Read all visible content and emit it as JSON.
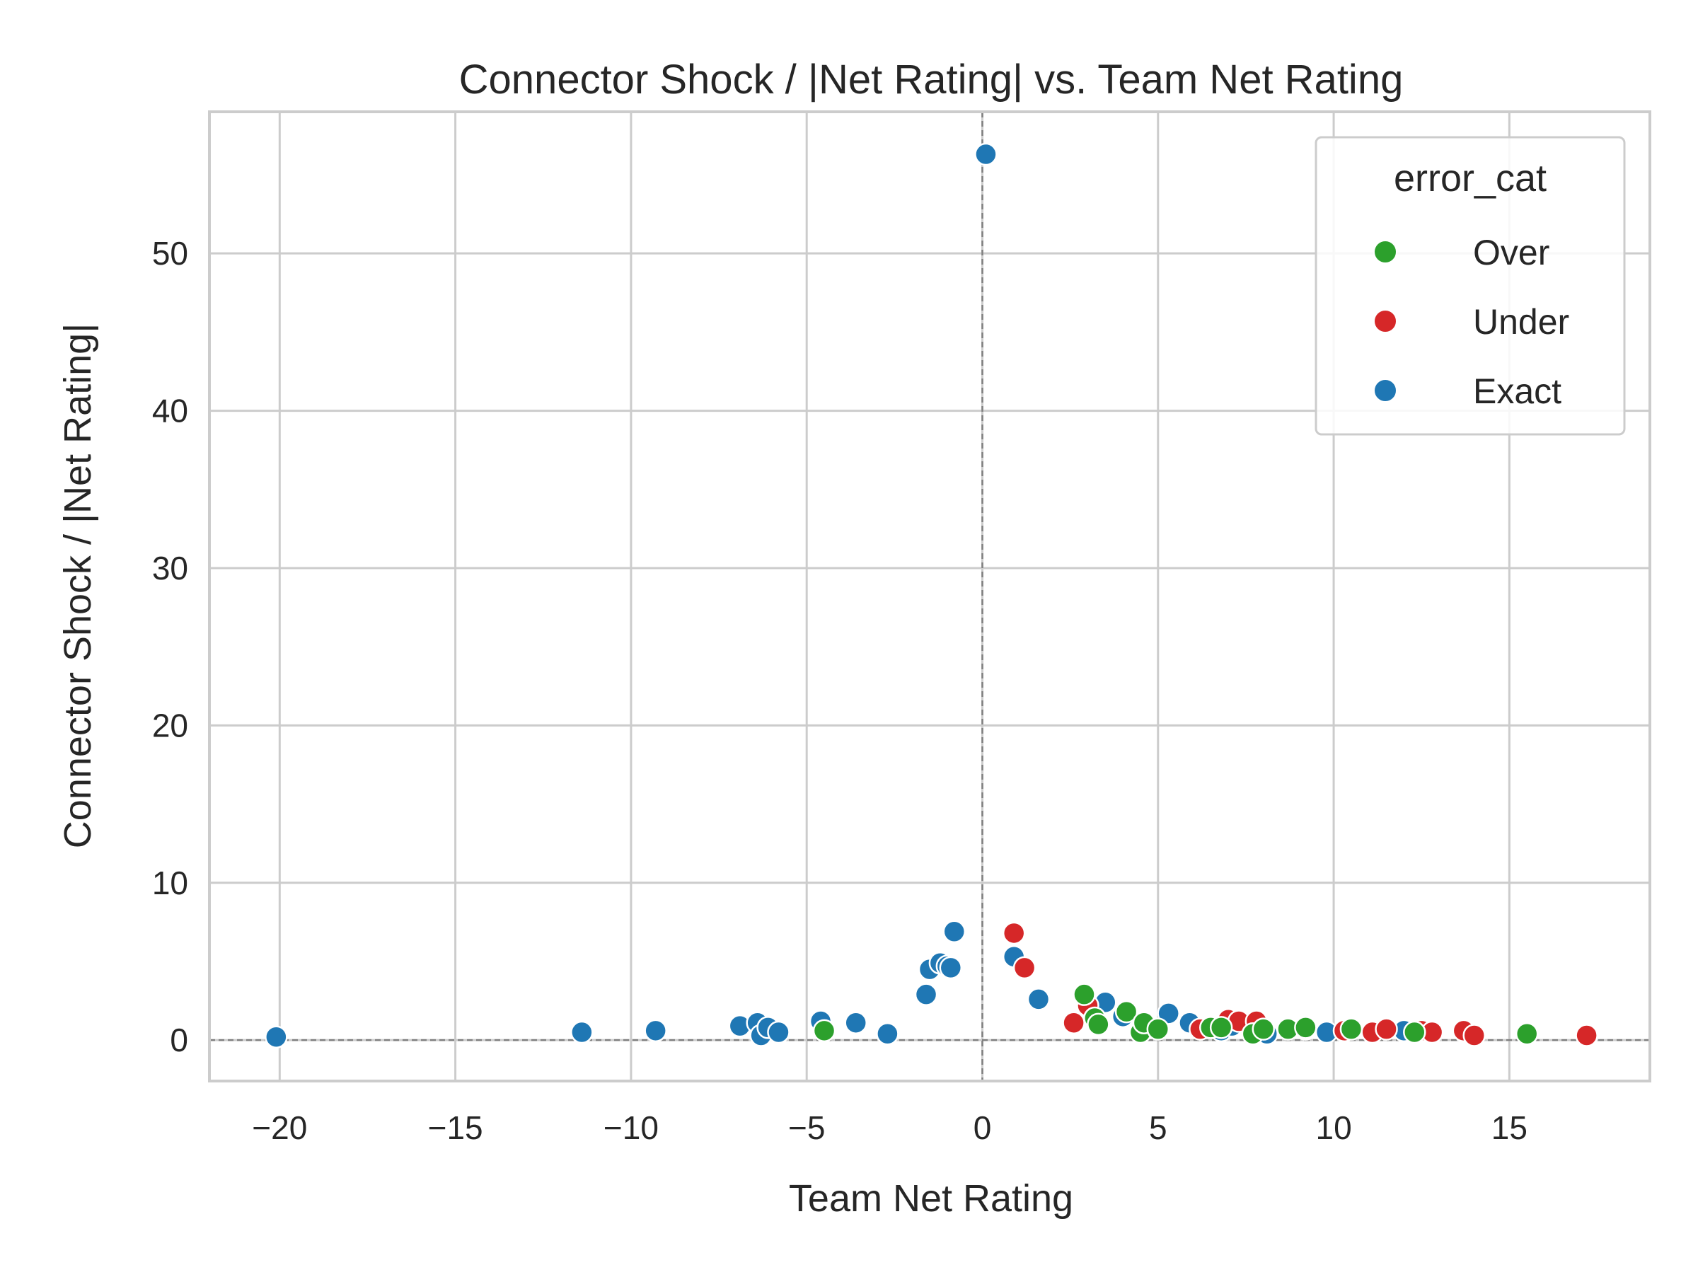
{
  "chart_data": {
    "type": "scatter",
    "title": "Connector Shock / |Net Rating| vs. Team Net Rating",
    "xlabel": "Team Net Rating",
    "ylabel": "Connector Shock / |Net Rating|",
    "xlim": [
      -22,
      19
    ],
    "ylim": [
      -2.6,
      59
    ],
    "x_ticks": [
      -20,
      -15,
      -10,
      -5,
      0,
      5,
      10,
      15
    ],
    "x_tick_labels": [
      "−20",
      "−15",
      "−10",
      "−5",
      "0",
      "5",
      "10",
      "15"
    ],
    "y_ticks": [
      0,
      10,
      20,
      30,
      40,
      50
    ],
    "y_tick_labels": [
      "0",
      "10",
      "20",
      "30",
      "40",
      "50"
    ],
    "grid": true,
    "reference_lines": {
      "x": 0,
      "y": 0,
      "style": "dashed"
    },
    "legend": {
      "title": "error_cat",
      "placement": "top-right",
      "entries": [
        {
          "label": "Over",
          "color": "#2ca02c"
        },
        {
          "label": "Under",
          "color": "#d62728"
        },
        {
          "label": "Exact",
          "color": "#1f77b4"
        }
      ]
    },
    "series": [
      {
        "name": "Exact",
        "color": "#1f77b4",
        "points": [
          [
            -20.1,
            0.2
          ],
          [
            -11.4,
            0.5
          ],
          [
            -9.3,
            0.6
          ],
          [
            -6.9,
            0.9
          ],
          [
            -6.4,
            1.1
          ],
          [
            -6.3,
            0.3
          ],
          [
            -6.1,
            0.8
          ],
          [
            -5.8,
            0.5
          ],
          [
            -4.6,
            1.2
          ],
          [
            -3.6,
            1.1
          ],
          [
            -2.7,
            0.4
          ],
          [
            -1.6,
            2.9
          ],
          [
            -1.5,
            4.5
          ],
          [
            -1.2,
            4.9
          ],
          [
            -1.0,
            4.7
          ],
          [
            -0.9,
            4.6
          ],
          [
            -0.8,
            6.9
          ],
          [
            0.1,
            56.3
          ],
          [
            0.9,
            5.3
          ],
          [
            1.6,
            2.6
          ],
          [
            3.5,
            2.4
          ],
          [
            4.0,
            1.5
          ],
          [
            5.3,
            1.7
          ],
          [
            5.9,
            1.1
          ],
          [
            6.8,
            0.6
          ],
          [
            7.1,
            0.9
          ],
          [
            8.1,
            0.4
          ],
          [
            9.8,
            0.5
          ],
          [
            12.0,
            0.6
          ]
        ]
      },
      {
        "name": "Under",
        "color": "#d62728",
        "points": [
          [
            0.9,
            6.8
          ],
          [
            1.2,
            4.6
          ],
          [
            2.6,
            1.1
          ],
          [
            3.0,
            2.2
          ],
          [
            6.2,
            0.7
          ],
          [
            7.0,
            1.3
          ],
          [
            7.3,
            1.2
          ],
          [
            7.8,
            1.2
          ],
          [
            9.2,
            0.7
          ],
          [
            10.3,
            0.6
          ],
          [
            11.1,
            0.5
          ],
          [
            11.5,
            0.7
          ],
          [
            12.5,
            0.6
          ],
          [
            12.8,
            0.5
          ],
          [
            13.7,
            0.6
          ],
          [
            14.0,
            0.3
          ],
          [
            17.2,
            0.3
          ]
        ]
      },
      {
        "name": "Over",
        "color": "#2ca02c",
        "points": [
          [
            -4.5,
            0.6
          ],
          [
            2.9,
            2.9
          ],
          [
            3.2,
            1.4
          ],
          [
            3.3,
            1.0
          ],
          [
            4.1,
            1.8
          ],
          [
            4.5,
            0.5
          ],
          [
            4.6,
            1.1
          ],
          [
            5.0,
            0.7
          ],
          [
            6.5,
            0.8
          ],
          [
            6.8,
            0.8
          ],
          [
            7.7,
            0.4
          ],
          [
            8.0,
            0.7
          ],
          [
            8.7,
            0.7
          ],
          [
            9.2,
            0.8
          ],
          [
            10.5,
            0.7
          ],
          [
            12.3,
            0.5
          ],
          [
            15.5,
            0.4
          ]
        ]
      }
    ]
  }
}
